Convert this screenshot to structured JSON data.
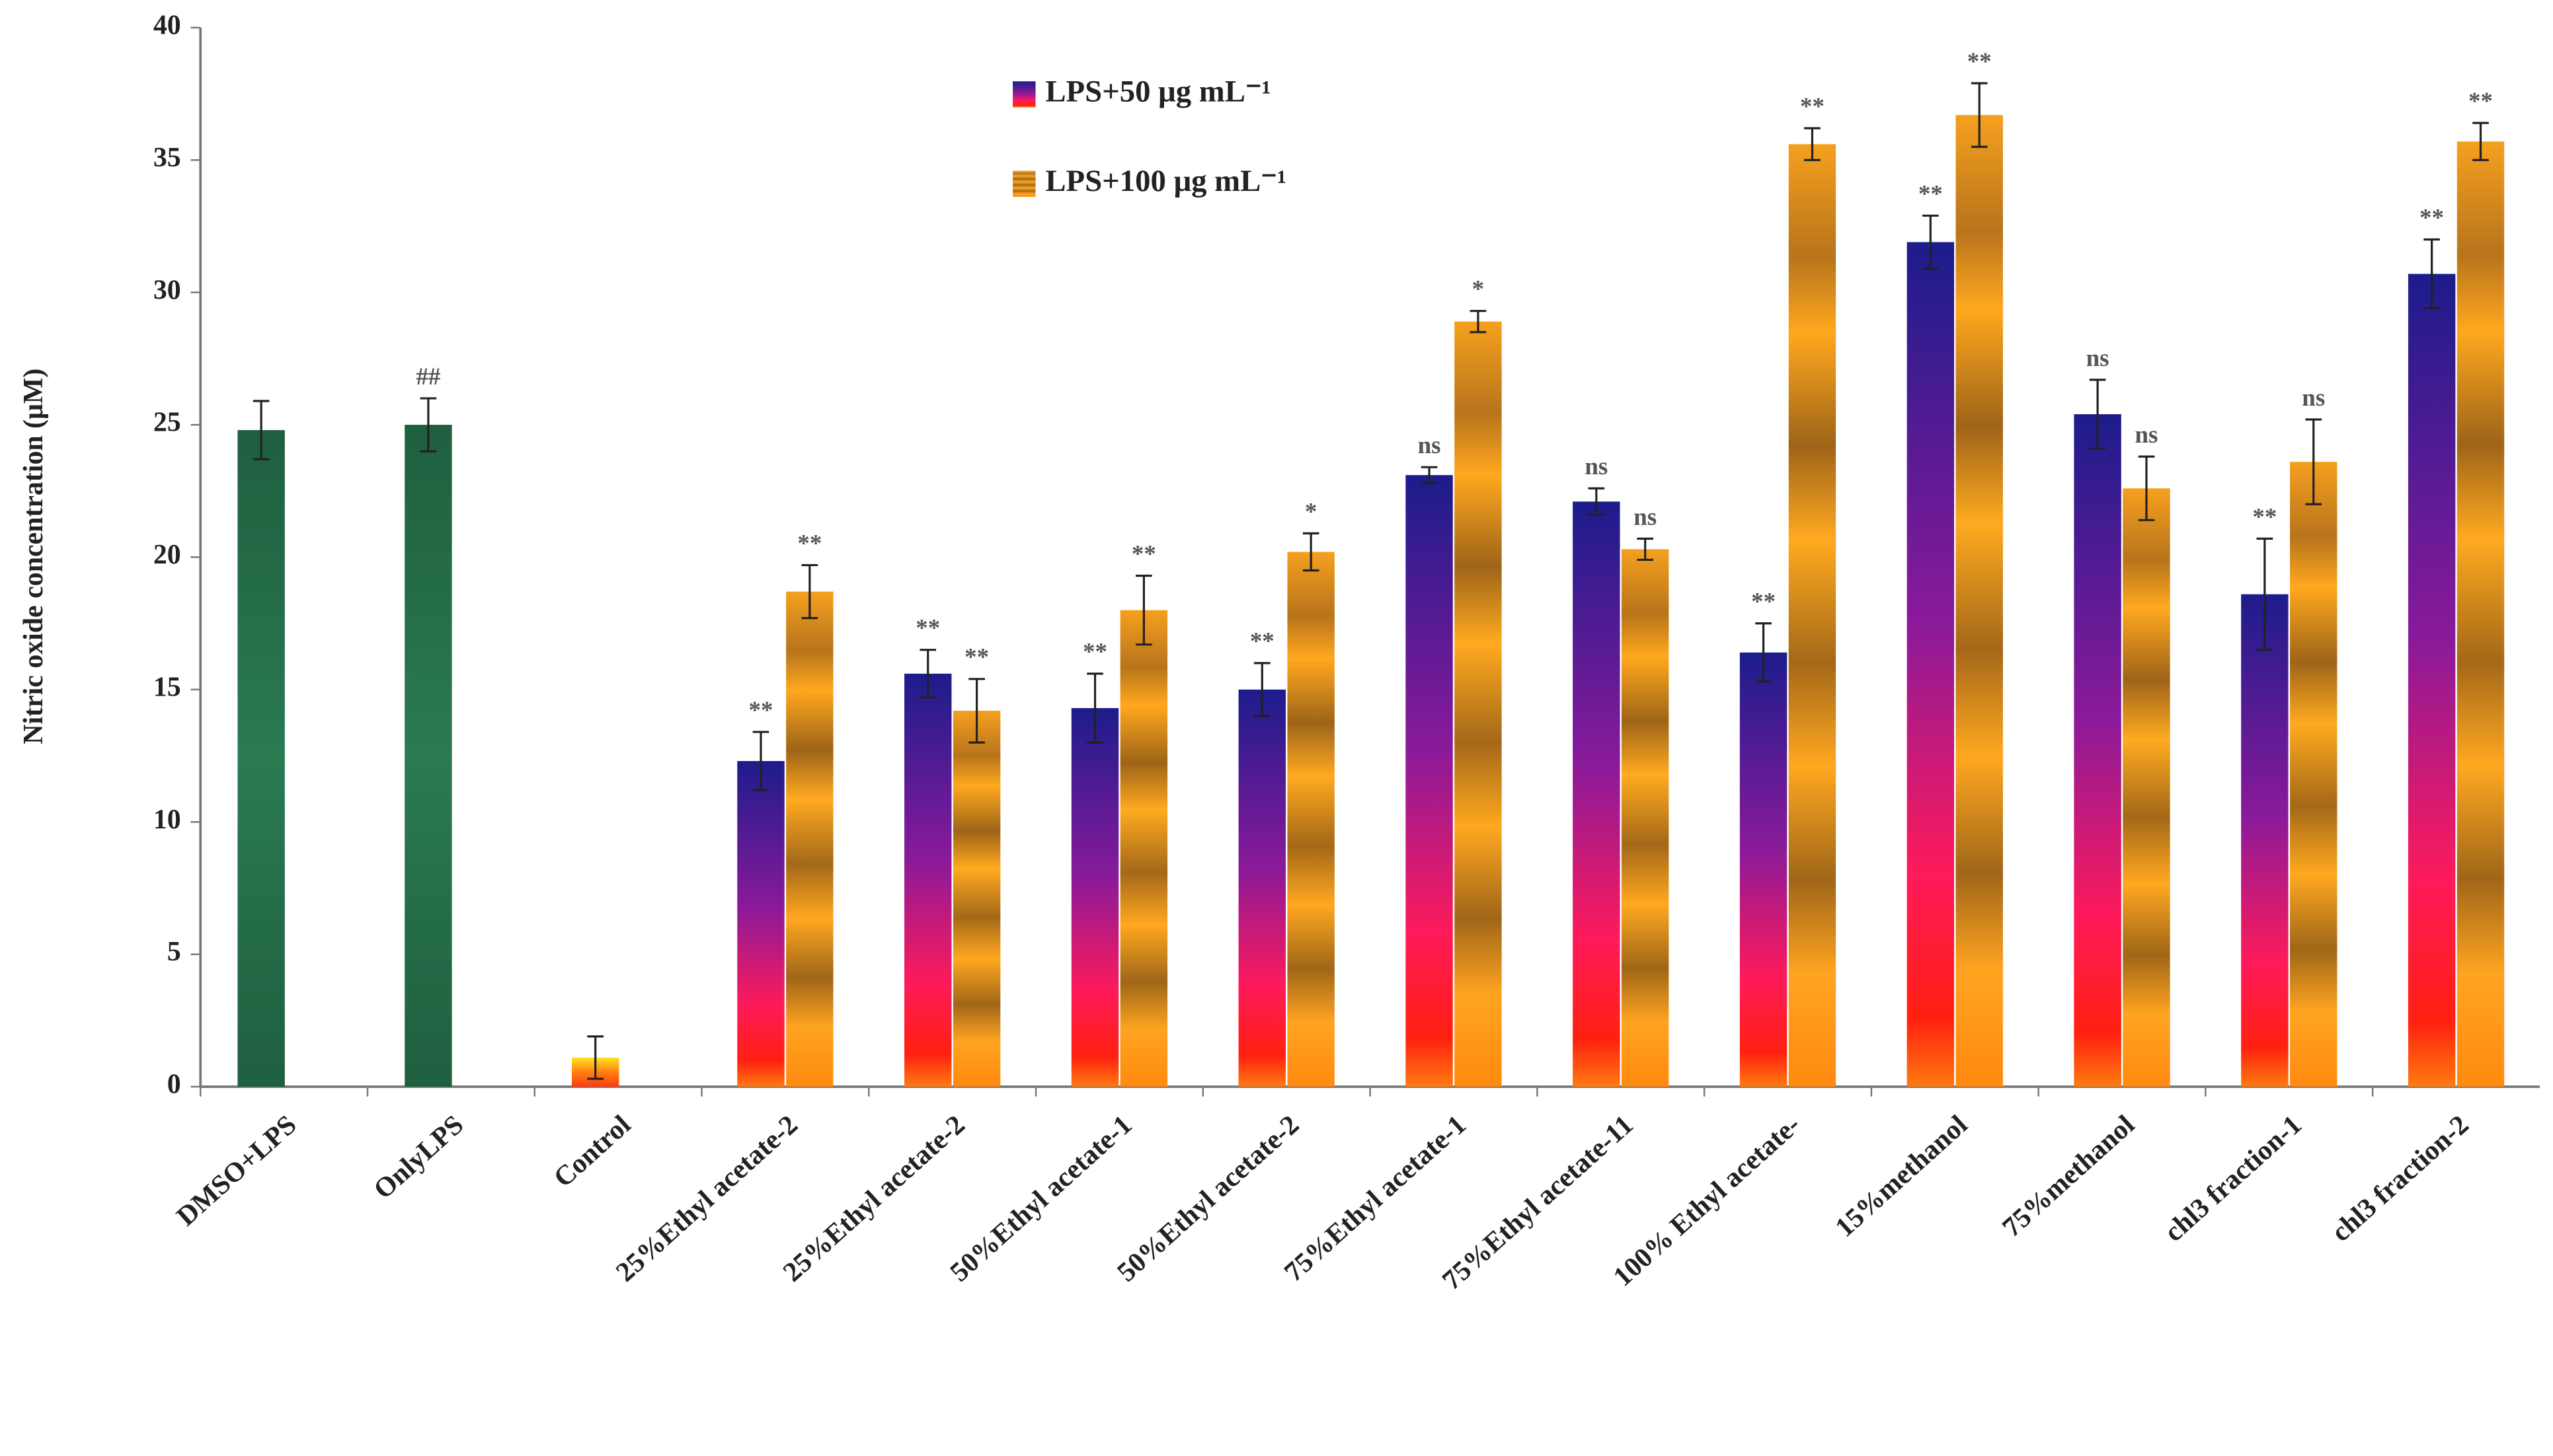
{
  "chart_data": {
    "type": "bar",
    "y_label": "Nitric oxide concentration (μM)",
    "categories": [
      "DMSO+LPS",
      "OnlyLPS",
      "Control",
      "25%Ethyl acetate-2",
      "25%Ethyl acetate-2",
      "50%Ethyl acetate-1",
      "50%Ethyl acetate-2",
      "75%Ethyl acetate-1",
      "75%Ethyl acetate-11",
      "100% Ethyl acetate-",
      "15%methanol",
      "75%methanol",
      "chl3 fraction-1",
      "chl3 fraction-2"
    ],
    "control_values": [
      24.8,
      25.0,
      1.1
    ],
    "control_errors": [
      1.1,
      1.0,
      0.8
    ],
    "control_labels": [
      null,
      "##",
      null
    ],
    "control_colors": [
      "#1f5f3f",
      "#1f5f3f",
      "#ff3a10"
    ],
    "series": [
      {
        "name": "LPS+50 μg mL⁻¹",
        "color": "#1c1c8c",
        "values": [
          null,
          null,
          null,
          12.3,
          15.6,
          14.3,
          15.0,
          23.1,
          22.1,
          16.4,
          31.9,
          25.4,
          18.6,
          30.7
        ],
        "errors": [
          null,
          null,
          null,
          1.1,
          0.9,
          1.3,
          1.0,
          0.3,
          0.5,
          1.1,
          1.0,
          1.3,
          2.1,
          1.3
        ],
        "labels": [
          null,
          null,
          null,
          "**",
          "**",
          "**",
          "**",
          "ns",
          "ns",
          "**",
          "**",
          "ns",
          "**",
          "**"
        ]
      },
      {
        "name": "LPS+100 μg mL⁻¹",
        "color": "#f5a01e",
        "values": [
          null,
          null,
          null,
          18.7,
          14.2,
          18.0,
          20.2,
          28.9,
          20.3,
          35.6,
          36.7,
          22.6,
          23.6,
          35.7
        ],
        "errors": [
          null,
          null,
          null,
          1.0,
          1.2,
          1.3,
          0.7,
          0.4,
          0.4,
          0.6,
          1.2,
          1.2,
          1.6,
          0.7
        ],
        "labels": [
          null,
          null,
          null,
          "**",
          "**",
          "**",
          "*",
          "*",
          "ns",
          "**",
          "**",
          "ns",
          "ns",
          "**"
        ]
      }
    ],
    "ylim": [
      0,
      40
    ],
    "yticks": [
      0,
      5,
      10,
      15,
      20,
      25,
      30,
      35,
      40
    ],
    "legend": "top"
  }
}
